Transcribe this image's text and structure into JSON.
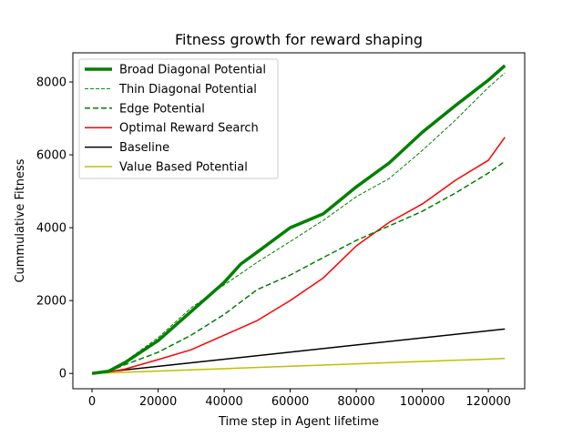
{
  "chart_data": {
    "type": "line",
    "title": "Fitness growth for reward shaping",
    "xlabel": "Time step in Agent lifetime",
    "ylabel": "Cummulative Fitness",
    "xlim": [
      -5800,
      131000
    ],
    "ylim": [
      -420,
      8800
    ],
    "xticks": [
      0,
      20000,
      40000,
      60000,
      80000,
      100000,
      120000
    ],
    "xtick_labels": [
      "0",
      "20000",
      "40000",
      "60000",
      "80000",
      "100000",
      "120000"
    ],
    "yticks": [
      0,
      2000,
      4000,
      6000,
      8000
    ],
    "ytick_labels": [
      "0",
      "2000",
      "4000",
      "6000",
      "8000"
    ],
    "grid": false,
    "legend_position": "upper-left",
    "series": [
      {
        "name": "Broad Diagonal Potential",
        "color": "#008000",
        "style": "solid",
        "width": 3.5,
        "points": [
          [
            0,
            0
          ],
          [
            5000,
            60
          ],
          [
            10000,
            300
          ],
          [
            20000,
            900
          ],
          [
            30000,
            1700
          ],
          [
            40000,
            2500
          ],
          [
            45000,
            3000
          ],
          [
            50000,
            3330
          ],
          [
            60000,
            4000
          ],
          [
            70000,
            4380
          ],
          [
            80000,
            5120
          ],
          [
            90000,
            5780
          ],
          [
            100000,
            6620
          ],
          [
            110000,
            7350
          ],
          [
            120000,
            8050
          ],
          [
            125000,
            8450
          ]
        ]
      },
      {
        "name": "Thin Diagonal Potential",
        "color": "#008000",
        "style": "dashed-fine",
        "width": 1,
        "points": [
          [
            0,
            0
          ],
          [
            5000,
            70
          ],
          [
            10000,
            330
          ],
          [
            20000,
            980
          ],
          [
            30000,
            1800
          ],
          [
            40000,
            2430
          ],
          [
            50000,
            3050
          ],
          [
            60000,
            3620
          ],
          [
            70000,
            4200
          ],
          [
            80000,
            4850
          ],
          [
            90000,
            5350
          ],
          [
            100000,
            6120
          ],
          [
            110000,
            6950
          ],
          [
            120000,
            7850
          ],
          [
            125000,
            8250
          ]
        ]
      },
      {
        "name": "Edge Potential",
        "color": "#008000",
        "style": "dashed",
        "width": 1.5,
        "points": [
          [
            0,
            0
          ],
          [
            5000,
            50
          ],
          [
            10000,
            240
          ],
          [
            20000,
            580
          ],
          [
            30000,
            1050
          ],
          [
            40000,
            1620
          ],
          [
            50000,
            2300
          ],
          [
            60000,
            2700
          ],
          [
            70000,
            3180
          ],
          [
            80000,
            3650
          ],
          [
            90000,
            4050
          ],
          [
            100000,
            4450
          ],
          [
            110000,
            4950
          ],
          [
            120000,
            5500
          ],
          [
            125000,
            5820
          ]
        ]
      },
      {
        "name": "Optimal Reward Search",
        "color": "#ff0000",
        "style": "solid",
        "width": 1.5,
        "points": [
          [
            0,
            0
          ],
          [
            5000,
            40
          ],
          [
            10000,
            120
          ],
          [
            20000,
            380
          ],
          [
            30000,
            650
          ],
          [
            40000,
            1050
          ],
          [
            50000,
            1450
          ],
          [
            60000,
            2000
          ],
          [
            70000,
            2620
          ],
          [
            80000,
            3500
          ],
          [
            90000,
            4150
          ],
          [
            100000,
            4650
          ],
          [
            110000,
            5300
          ],
          [
            120000,
            5850
          ],
          [
            125000,
            6480
          ]
        ]
      },
      {
        "name": "Baseline",
        "color": "#000000",
        "style": "solid",
        "width": 1.5,
        "points": [
          [
            0,
            0
          ],
          [
            125000,
            1220
          ]
        ]
      },
      {
        "name": "Value Based Potential",
        "color": "#bfbf00",
        "style": "solid",
        "width": 1.5,
        "points": [
          [
            0,
            0
          ],
          [
            125000,
            410
          ]
        ]
      }
    ]
  }
}
